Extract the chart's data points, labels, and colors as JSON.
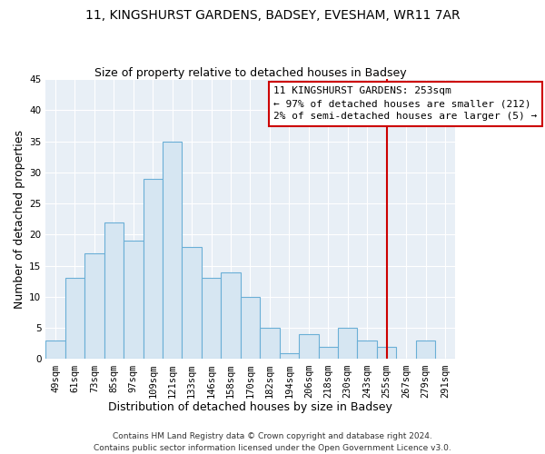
{
  "title": "11, KINGSHURST GARDENS, BADSEY, EVESHAM, WR11 7AR",
  "subtitle": "Size of property relative to detached houses in Badsey",
  "xlabel": "Distribution of detached houses by size in Badsey",
  "ylabel": "Number of detached properties",
  "bar_labels": [
    "49sqm",
    "61sqm",
    "73sqm",
    "85sqm",
    "97sqm",
    "109sqm",
    "121sqm",
    "133sqm",
    "146sqm",
    "158sqm",
    "170sqm",
    "182sqm",
    "194sqm",
    "206sqm",
    "218sqm",
    "230sqm",
    "243sqm",
    "255sqm",
    "267sqm",
    "279sqm",
    "291sqm"
  ],
  "bar_values": [
    3,
    13,
    17,
    22,
    19,
    29,
    35,
    18,
    13,
    14,
    10,
    5,
    1,
    4,
    2,
    5,
    3,
    2,
    0,
    3,
    0
  ],
  "bar_color": "#d6e6f2",
  "bar_edge_color": "#6aafd6",
  "vline_index": 17,
  "vline_color": "#cc0000",
  "ylim": [
    0,
    45
  ],
  "yticks": [
    0,
    5,
    10,
    15,
    20,
    25,
    30,
    35,
    40,
    45
  ],
  "annotation_title": "11 KINGSHURST GARDENS: 253sqm",
  "annotation_line1": "← 97% of detached houses are smaller (212)",
  "annotation_line2": "2% of semi-detached houses are larger (5) →",
  "annotation_box_color": "#ffffff",
  "annotation_box_edge": "#cc0000",
  "footer_line1": "Contains HM Land Registry data © Crown copyright and database right 2024.",
  "footer_line2": "Contains public sector information licensed under the Open Government Licence v3.0.",
  "bg_color": "#e8eff6",
  "title_fontsize": 10,
  "subtitle_fontsize": 9,
  "axis_label_fontsize": 9,
  "tick_fontsize": 7.5,
  "annotation_fontsize": 8,
  "footer_fontsize": 6.5
}
